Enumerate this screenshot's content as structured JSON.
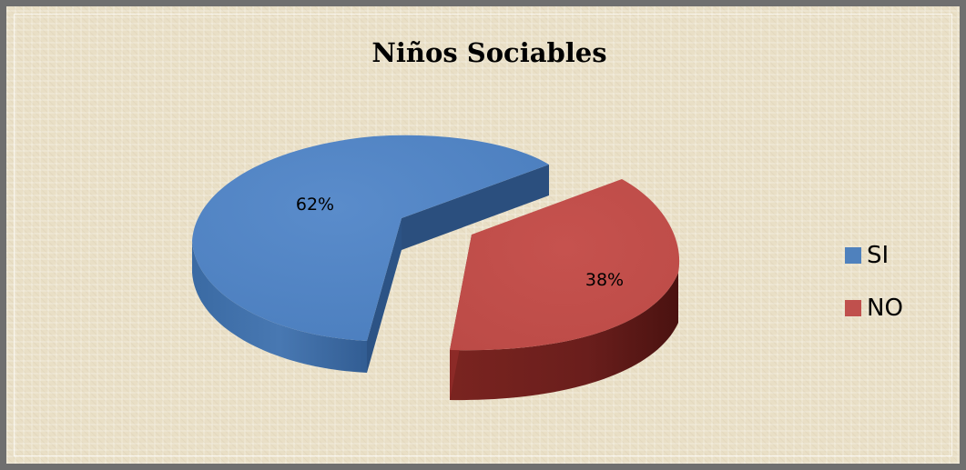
{
  "chart_data": {
    "type": "pie",
    "title": "Niños Sociables",
    "categories": [
      "SI",
      "NO"
    ],
    "values": [
      62,
      38
    ],
    "labels": [
      "62%",
      "38%"
    ],
    "colors": [
      "#4f81bd",
      "#c0504d"
    ],
    "three_d": true,
    "exploded": true,
    "legend_position": "right"
  }
}
